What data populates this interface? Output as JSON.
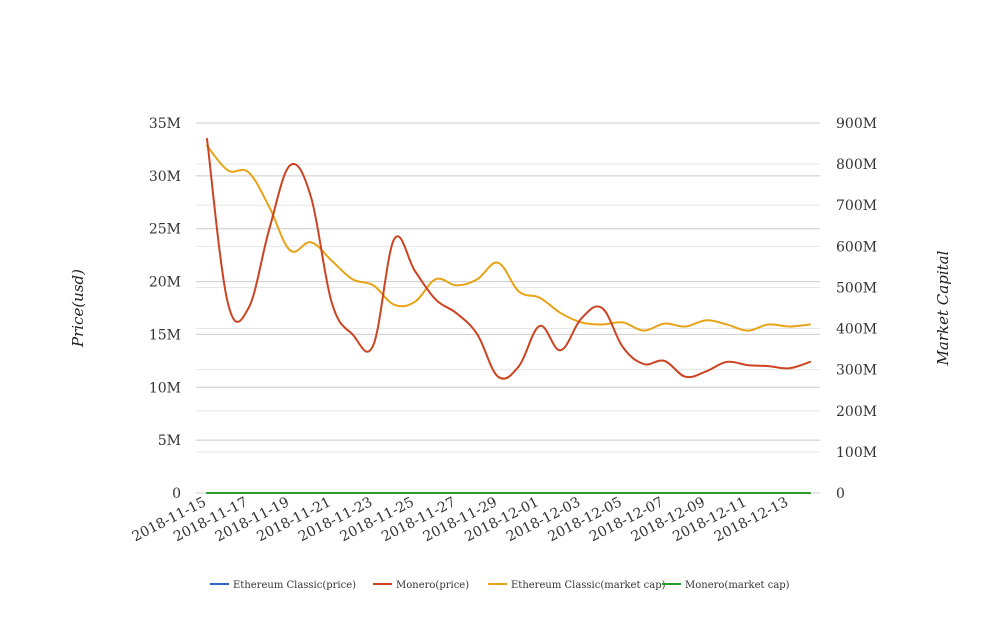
{
  "chart_data": {
    "type": "line",
    "ylabel": "Price(usd)",
    "y2label": "Market Capital",
    "x": [
      "2018-11-15",
      "2018-11-16",
      "2018-11-17",
      "2018-11-18",
      "2018-11-19",
      "2018-11-20",
      "2018-11-21",
      "2018-11-22",
      "2018-11-23",
      "2018-11-24",
      "2018-11-25",
      "2018-11-26",
      "2018-11-27",
      "2018-11-28",
      "2018-11-29",
      "2018-11-30",
      "2018-12-01",
      "2018-12-02",
      "2018-12-03",
      "2018-12-04",
      "2018-12-05",
      "2018-12-06",
      "2018-12-07",
      "2018-12-08",
      "2018-12-09",
      "2018-12-10",
      "2018-12-11",
      "2018-12-12",
      "2018-12-13",
      "2018-12-14"
    ],
    "xticks": [
      "2018-11-15",
      "2018-11-17",
      "2018-11-19",
      "2018-11-21",
      "2018-11-23",
      "2018-11-25",
      "2018-11-27",
      "2018-11-29",
      "2018-12-01",
      "2018-12-03",
      "2018-12-05",
      "2018-12-07",
      "2018-12-09",
      "2018-12-11",
      "2018-12-13"
    ],
    "yticks": [
      "0",
      "5M",
      "10M",
      "15M",
      "20M",
      "25M",
      "30M",
      "35M"
    ],
    "y2ticks": [
      "0",
      "100M",
      "200M",
      "300M",
      "400M",
      "500M",
      "600M",
      "700M",
      "800M",
      "900M"
    ],
    "ylim": [
      0,
      35000000
    ],
    "y2lim": [
      0,
      900000000
    ],
    "grid": true,
    "legend_position": "bottom",
    "series": [
      {
        "name": "Ethereum Classic(price)",
        "axis": "left",
        "color": "#3366cc",
        "values": [
          4.1,
          4.2,
          3.9,
          4.0,
          3.8,
          3.6,
          3.3,
          3.5,
          3.4,
          3.6,
          3.7,
          3.2,
          3.0,
          3.3,
          3.5,
          3.3,
          3.1,
          3.2,
          3.4,
          3.1,
          3.0,
          3.0,
          2.9,
          3.0,
          3.1,
          3.0,
          2.9,
          2.8,
          3.0,
          3.1
        ]
      },
      {
        "name": "Monero(price)",
        "axis": "left",
        "color": "#cc4422",
        "values": [
          33500000,
          18000000,
          17500000,
          25000000,
          31000000,
          28000000,
          18000000,
          15000000,
          14000000,
          24000000,
          21000000,
          18300000,
          17000000,
          15000000,
          11000000,
          12000000,
          15800000,
          13500000,
          16500000,
          17500000,
          13800000,
          12200000,
          12500000,
          11000000,
          11500000,
          12400000,
          12100000,
          12000000,
          11800000,
          12400000
        ]
      },
      {
        "name": "Ethereum Classic(market cap)",
        "axis": "right",
        "color": "#e8a317",
        "values": [
          845000000,
          785000000,
          780000000,
          695000000,
          590000000,
          610000000,
          565000000,
          520000000,
          505000000,
          458000000,
          465000000,
          520000000,
          505000000,
          520000000,
          560000000,
          490000000,
          475000000,
          438000000,
          415000000,
          410000000,
          415000000,
          395000000,
          412000000,
          405000000,
          420000000,
          410000000,
          395000000,
          410000000,
          405000000,
          410000000
        ]
      },
      {
        "name": "Monero(market cap)",
        "axis": "right",
        "color": "#2a9d2a",
        "values": [
          8,
          8,
          8,
          8,
          8,
          8,
          8,
          8,
          8,
          8,
          8,
          8,
          8,
          8,
          8,
          8,
          8,
          8,
          8,
          8,
          8,
          8,
          8,
          8,
          8,
          8,
          8,
          8,
          8,
          8
        ]
      }
    ]
  }
}
